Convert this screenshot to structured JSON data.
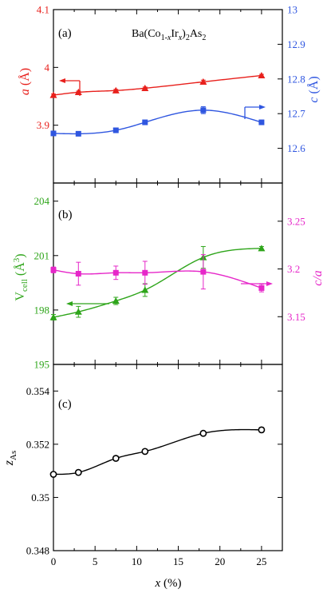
{
  "colors": {
    "red": "#e8201c",
    "blue": "#2f56e0",
    "green": "#2ea51a",
    "magenta": "#e627c9",
    "black": "#000000"
  },
  "chart_data": [
    {
      "type": "scatter",
      "panel_label": "(a)",
      "title": "Ba(Co1-xIrx)2As2",
      "title_parts": {
        "p1": "Ba(Co",
        "p2": "1-",
        "p3": "x",
        "p4": "Ir",
        "p5": "x",
        "p6": ")",
        "p7": "2",
        "p8": "As",
        "p9": "2"
      },
      "xlim": [
        0,
        27.5
      ],
      "xticks": [
        0,
        5,
        10,
        15,
        20,
        25
      ],
      "left_axis": {
        "label": "a (Å)",
        "label_parts": {
          "var": "a",
          "unit": " (Å)"
        },
        "ylim": [
          3.8,
          4.1
        ],
        "ticks": [
          3.9,
          4.0,
          4.1
        ],
        "tick_labels": [
          "3.9",
          "4",
          "4.1"
        ],
        "color": "#e8201c"
      },
      "right_axis": {
        "label": "c (Å)",
        "label_parts": {
          "var": "c",
          "unit": " (Å)"
        },
        "ylim": [
          12.5,
          13.0
        ],
        "ticks": [
          12.6,
          12.7,
          12.8,
          12.9,
          13.0
        ],
        "tick_labels": [
          "12.6",
          "12.7",
          "12.8",
          "12.9",
          "13"
        ],
        "color": "#2f56e0"
      },
      "series": [
        {
          "axis": "left",
          "marker": "triangle",
          "color": "#e8201c",
          "x": [
            0,
            3,
            7.5,
            11,
            18,
            25
          ],
          "y": [
            3.952,
            3.957,
            3.96,
            3.964,
            3.975,
            3.986
          ],
          "err": [
            0.002,
            0.002,
            0.002,
            0.002,
            0.003,
            0.002
          ]
        },
        {
          "axis": "right",
          "marker": "square",
          "color": "#2f56e0",
          "x": [
            0,
            3,
            7.5,
            11,
            18,
            25
          ],
          "y": [
            12.643,
            12.642,
            12.652,
            12.675,
            12.71,
            12.675
          ],
          "err": [
            0.004,
            0.004,
            0.004,
            0.006,
            0.01,
            0.004
          ]
        }
      ]
    },
    {
      "type": "scatter",
      "panel_label": "(b)",
      "xlim": [
        0,
        27.5
      ],
      "xticks": [
        0,
        5,
        10,
        15,
        20,
        25
      ],
      "left_axis": {
        "label": "Vcell (Å3)",
        "label_parts": {
          "var": "V",
          "sub": "cell",
          "unit": " (Å",
          "sup": "3",
          "close": ")"
        },
        "ylim": [
          195,
          205
        ],
        "ticks": [
          195,
          198,
          201,
          204
        ],
        "tick_labels": [
          "195",
          "198",
          "201",
          "204"
        ],
        "color": "#2ea51a"
      },
      "right_axis": {
        "label": "c/a",
        "ylim": [
          3.1,
          3.29
        ],
        "ticks": [
          3.15,
          3.2,
          3.25
        ],
        "tick_labels": [
          "3.15",
          "3.2",
          "3.25"
        ],
        "color": "#e627c9"
      },
      "series": [
        {
          "axis": "left",
          "marker": "triangle",
          "color": "#2ea51a",
          "x": [
            0,
            3,
            7.5,
            11,
            18,
            25
          ],
          "y": [
            197.6,
            197.9,
            198.5,
            199.1,
            200.9,
            201.4
          ],
          "err": [
            0.15,
            0.3,
            0.2,
            0.35,
            0.6,
            0.1
          ]
        },
        {
          "axis": "right",
          "marker": "square",
          "color": "#e627c9",
          "x": [
            0,
            3,
            7.5,
            11,
            18,
            25
          ],
          "y": [
            3.199,
            3.195,
            3.196,
            3.196,
            3.197,
            3.18
          ],
          "err": [
            0.003,
            0.012,
            0.007,
            0.012,
            0.018,
            0.004
          ]
        }
      ]
    },
    {
      "type": "scatter",
      "panel_label": "(c)",
      "xlim": [
        0,
        27.5
      ],
      "xticks": [
        0,
        5,
        10,
        15,
        20,
        25
      ],
      "xtick_labels": [
        "0",
        "5",
        "10",
        "15",
        "20",
        "25"
      ],
      "xlabel": "x (%)",
      "xlabel_parts": {
        "var": "x",
        "unit": " (%)"
      },
      "left_axis": {
        "label": "zAs",
        "label_parts": {
          "var": "z",
          "sub": "As"
        },
        "ylim": [
          0.348,
          0.355
        ],
        "ticks": [
          0.348,
          0.35,
          0.352,
          0.354
        ],
        "tick_labels": [
          "0.348",
          "0.35",
          "0.352",
          "0.354"
        ],
        "color": "#000000"
      },
      "series": [
        {
          "axis": "left",
          "marker": "circle-open",
          "color": "#000000",
          "x": [
            0,
            3,
            7.5,
            11,
            18,
            25
          ],
          "y": [
            0.35087,
            0.35094,
            0.35147,
            0.35173,
            0.35241,
            0.35254
          ],
          "err": [
            5e-05,
            8e-05,
            9e-05,
            6e-05,
            6e-05,
            9e-05
          ]
        }
      ]
    }
  ]
}
